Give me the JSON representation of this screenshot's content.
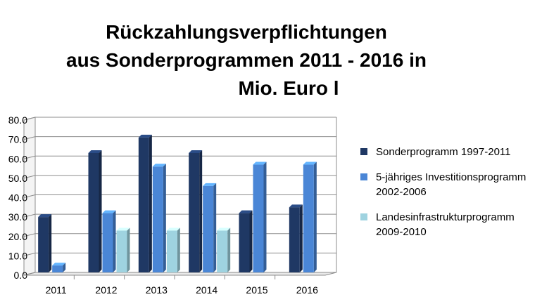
{
  "chart_data": {
    "type": "bar",
    "title_lines": [
      "Rückzahlungsverpflichtungen",
      "aus Sonderprogrammen 2011 - 2016 in",
      "Mio. Euro l"
    ],
    "xlabel": "",
    "ylabel": "",
    "categories": [
      "2011",
      "2012",
      "2013",
      "2014",
      "2015",
      "2016"
    ],
    "ylim": [
      0,
      80
    ],
    "yticks": [
      "0.0",
      "10.0",
      "20.0",
      "30.0",
      "40.0",
      "50.0",
      "60.0",
      "70.0",
      "80.0"
    ],
    "grid": true,
    "legend_position": "right",
    "series": [
      {
        "name": "Sonderprogramm 1997-2011",
        "values": [
          30,
          63,
          71,
          63,
          32,
          35
        ],
        "color": "#1F3864"
      },
      {
        "name": "5-jähriges Investitionsprogramm 2002-2006",
        "values": [
          5,
          32,
          56,
          46,
          57,
          57
        ],
        "color": "#4A86D6"
      },
      {
        "name": "Landesinfrastrukturprogramm 2009-2010",
        "values": [
          null,
          23,
          23,
          23,
          null,
          null
        ],
        "color": "#9FD3E0"
      }
    ]
  }
}
